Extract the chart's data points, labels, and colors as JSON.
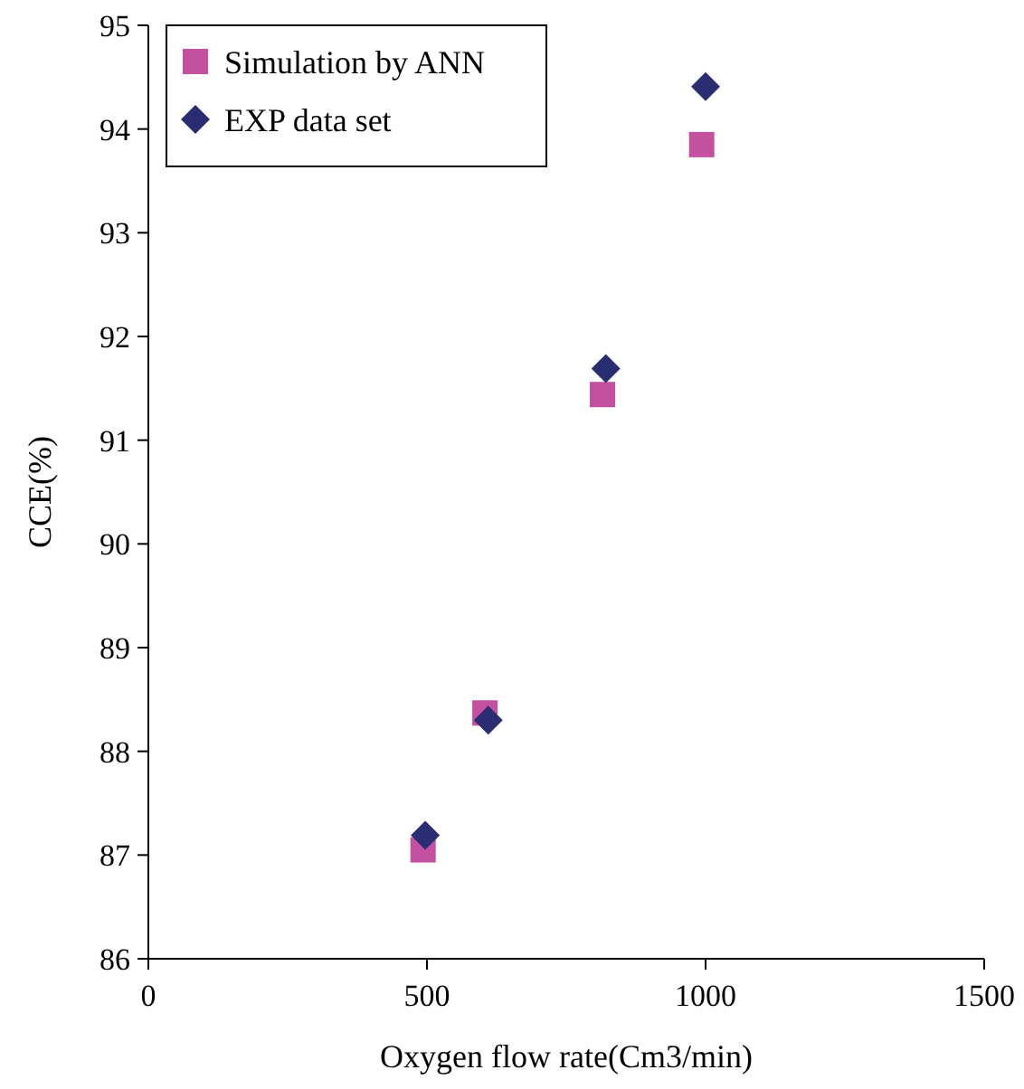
{
  "chart_data": {
    "type": "scatter",
    "xlabel": "Oxygen flow rate(Cm3/min)",
    "ylabel": "CCE(%)",
    "xlim": [
      0,
      1500
    ],
    "xticks": [
      0,
      500,
      1000,
      1500
    ],
    "ylim": [
      86,
      95
    ],
    "yticks": [
      86,
      87,
      88,
      89,
      90,
      91,
      92,
      93,
      94,
      95
    ],
    "legend": "top left",
    "grid": false,
    "series": [
      {
        "name": "Simulation by ANN",
        "color": "#c4519f",
        "marker": "square",
        "x": [
          493,
          604,
          815,
          993
        ],
        "values": [
          87.05,
          88.37,
          91.44,
          93.85
        ]
      },
      {
        "name": "EXP data set",
        "color": "#2b2d72",
        "marker": "diamond",
        "x": [
          497,
          610,
          821,
          1000
        ],
        "values": [
          87.19,
          88.3,
          91.69,
          94.41
        ]
      }
    ]
  }
}
